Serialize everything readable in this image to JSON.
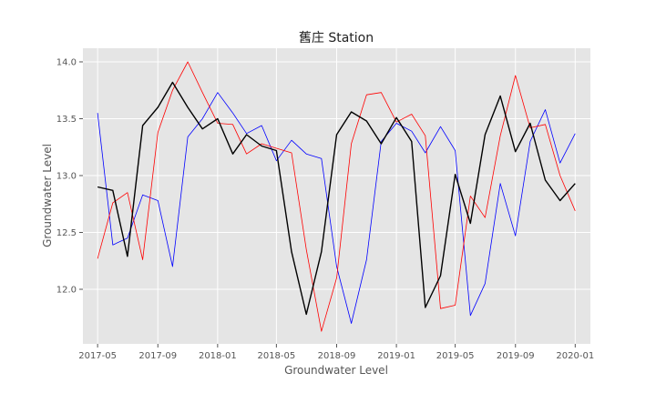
{
  "chart_data": {
    "type": "line",
    "title": "舊庄 Station",
    "xlabel": "Groundwater Level",
    "ylabel": "Groundwater Level",
    "ylim": [
      11.52,
      14.12
    ],
    "xlim": [
      "2017-04-01",
      "2020-02-01"
    ],
    "grid": true,
    "legend": "none",
    "x_ticks": [
      "2017-05",
      "2017-09",
      "2018-01",
      "2018-05",
      "2018-09",
      "2019-01",
      "2019-05",
      "2019-09",
      "2020-01"
    ],
    "y_ticks": [
      "12.0",
      "12.5",
      "13.0",
      "13.5",
      "14.0"
    ],
    "x": [
      "2017-05",
      "2017-06",
      "2017-07",
      "2017-08",
      "2017-09",
      "2017-10",
      "2017-11",
      "2017-12",
      "2018-01",
      "2018-02",
      "2018-03",
      "2018-04",
      "2018-05",
      "2018-06",
      "2018-07",
      "2018-08",
      "2018-09",
      "2018-10",
      "2018-11",
      "2018-12",
      "2019-01",
      "2019-02",
      "2019-03",
      "2019-04",
      "2019-05",
      "2019-06",
      "2019-07",
      "2019-08",
      "2019-09",
      "2019-10",
      "2019-11",
      "2019-12",
      "2020-01"
    ],
    "series": [
      {
        "color": "#0000ff",
        "width": 0.8,
        "values": [
          13.55,
          12.39,
          12.45,
          12.83,
          12.78,
          12.2,
          13.34,
          13.5,
          13.73,
          13.55,
          13.37,
          13.44,
          13.13,
          13.31,
          13.19,
          13.15,
          12.2,
          11.7,
          12.26,
          13.3,
          13.46,
          13.39,
          13.2,
          13.43,
          13.22,
          11.77,
          12.05,
          12.93,
          12.47,
          13.3,
          13.58,
          13.11,
          13.37
        ]
      },
      {
        "color": "#ff0000",
        "width": 0.8,
        "values": [
          12.27,
          12.76,
          12.85,
          12.26,
          13.38,
          13.75,
          14.0,
          13.73,
          13.46,
          13.45,
          13.19,
          13.28,
          13.24,
          13.2,
          12.35,
          11.63,
          12.1,
          13.28,
          13.71,
          13.73,
          13.47,
          13.54,
          13.35,
          11.83,
          11.86,
          12.82,
          12.63,
          13.35,
          13.88,
          13.42,
          13.45,
          13.0,
          12.69
        ]
      },
      {
        "color": "#000000",
        "width": 1.4,
        "values": [
          12.9,
          12.87,
          12.29,
          13.44,
          13.6,
          13.82,
          13.6,
          13.41,
          13.5,
          13.19,
          13.36,
          13.26,
          13.22,
          12.33,
          11.78,
          12.33,
          13.36,
          13.56,
          13.48,
          13.28,
          13.51,
          13.3,
          11.84,
          12.12,
          13.01,
          12.58,
          13.36,
          13.7,
          13.21,
          13.46,
          12.96,
          12.78,
          12.93
        ]
      }
    ]
  }
}
